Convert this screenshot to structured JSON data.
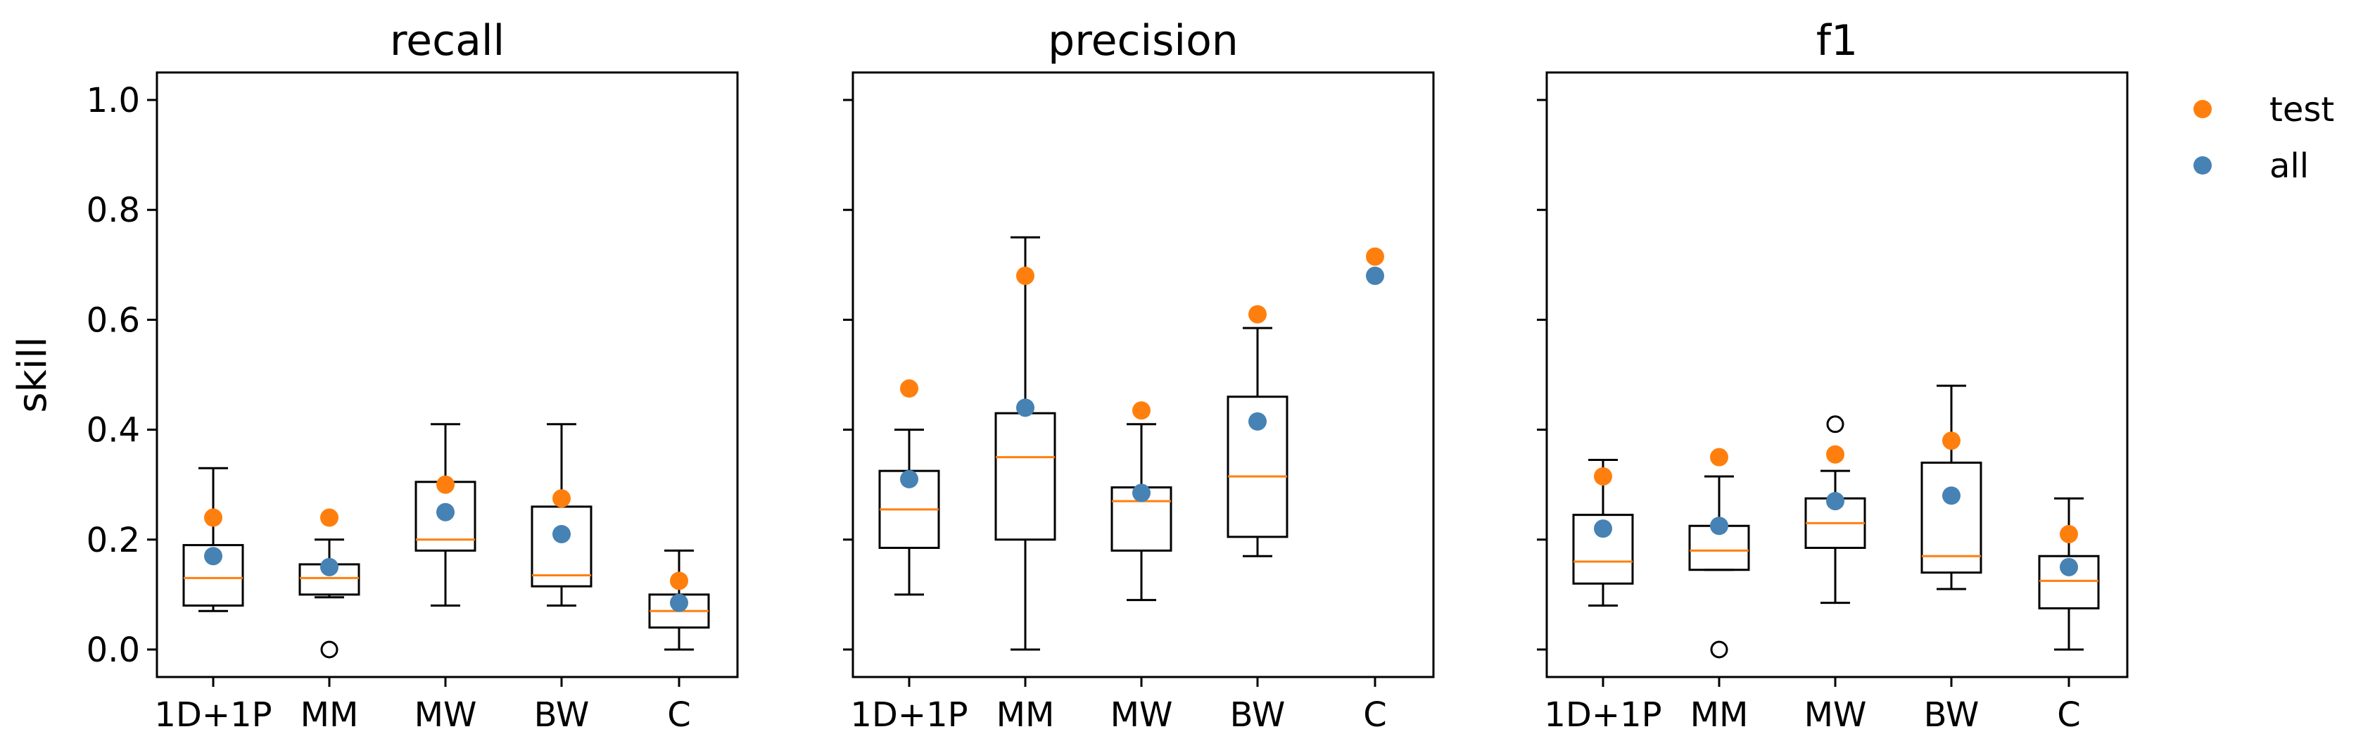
{
  "chart_data": {
    "type": "box",
    "ylabel": "skill",
    "ylim": [
      -0.05,
      1.05
    ],
    "yticks": [
      0.0,
      0.2,
      0.4,
      0.6,
      0.8,
      1.0
    ],
    "ytick_labels": [
      "0.0",
      "0.2",
      "0.4",
      "0.6",
      "0.8",
      "1.0"
    ],
    "categories": [
      "1D+1P",
      "MM",
      "MW",
      "BW",
      "C"
    ],
    "legend": {
      "placement": "outside-top-right",
      "entries": [
        {
          "label": "test",
          "color": "#ff7f0e"
        },
        {
          "label": "all",
          "color": "#4682b4"
        }
      ]
    },
    "colors": {
      "median": "#ff7f0e",
      "test": "#ff7f0e",
      "all": "#4682b4"
    },
    "panels": [
      {
        "title": "recall",
        "boxes": [
          {
            "category": "1D+1P",
            "whislo": 0.07,
            "q1": 0.08,
            "med": 0.13,
            "q3": 0.19,
            "whishi": 0.33,
            "fliers": []
          },
          {
            "category": "MM",
            "whislo": 0.095,
            "q1": 0.1,
            "med": 0.13,
            "q3": 0.155,
            "whishi": 0.2,
            "fliers": [
              0.0
            ]
          },
          {
            "category": "MW",
            "whislo": 0.08,
            "q1": 0.18,
            "med": 0.2,
            "q3": 0.305,
            "whishi": 0.41,
            "fliers": []
          },
          {
            "category": "BW",
            "whislo": 0.08,
            "q1": 0.115,
            "med": 0.135,
            "q3": 0.26,
            "whishi": 0.41,
            "fliers": []
          },
          {
            "category": "C",
            "whislo": 0.0,
            "q1": 0.04,
            "med": 0.07,
            "q3": 0.1,
            "whishi": 0.18,
            "fliers": []
          }
        ],
        "test": [
          0.24,
          0.24,
          0.3,
          0.275,
          0.125
        ],
        "all": [
          0.17,
          0.15,
          0.25,
          0.21,
          0.085
        ]
      },
      {
        "title": "precision",
        "boxes": [
          {
            "category": "1D+1P",
            "whislo": 0.1,
            "q1": 0.185,
            "med": 0.255,
            "q3": 0.325,
            "whishi": 0.4,
            "fliers": []
          },
          {
            "category": "MM",
            "whislo": 0.0,
            "q1": 0.2,
            "med": 0.35,
            "q3": 0.43,
            "whishi": 0.75,
            "fliers": []
          },
          {
            "category": "MW",
            "whislo": 0.09,
            "q1": 0.18,
            "med": 0.27,
            "q3": 0.295,
            "whishi": 0.41,
            "fliers": []
          },
          {
            "category": "BW",
            "whislo": 0.17,
            "q1": 0.205,
            "med": 0.315,
            "q3": 0.46,
            "whishi": 0.585,
            "fliers": []
          },
          {
            "category": "C",
            "whislo": null,
            "q1": null,
            "med": null,
            "q3": null,
            "whishi": null,
            "fliers": []
          }
        ],
        "test": [
          0.475,
          0.68,
          0.435,
          0.61,
          0.715
        ],
        "all": [
          0.31,
          0.44,
          0.285,
          0.415,
          0.68
        ]
      },
      {
        "title": "f1",
        "boxes": [
          {
            "category": "1D+1P",
            "whislo": 0.08,
            "q1": 0.12,
            "med": 0.16,
            "q3": 0.245,
            "whishi": 0.345,
            "fliers": []
          },
          {
            "category": "MM",
            "whislo": 0.145,
            "q1": 0.145,
            "med": 0.18,
            "q3": 0.225,
            "whishi": 0.315,
            "fliers": [
              0.0
            ]
          },
          {
            "category": "MW",
            "whislo": 0.085,
            "q1": 0.185,
            "med": 0.23,
            "q3": 0.275,
            "whishi": 0.325,
            "fliers": [
              0.41
            ]
          },
          {
            "category": "BW",
            "whislo": 0.11,
            "q1": 0.14,
            "med": 0.17,
            "q3": 0.34,
            "whishi": 0.48,
            "fliers": []
          },
          {
            "category": "C",
            "whislo": 0.0,
            "q1": 0.075,
            "med": 0.125,
            "q3": 0.17,
            "whishi": 0.275,
            "fliers": []
          }
        ],
        "test": [
          0.315,
          0.35,
          0.355,
          0.38,
          0.21
        ],
        "all": [
          0.22,
          0.225,
          0.27,
          0.28,
          0.15
        ]
      }
    ]
  }
}
